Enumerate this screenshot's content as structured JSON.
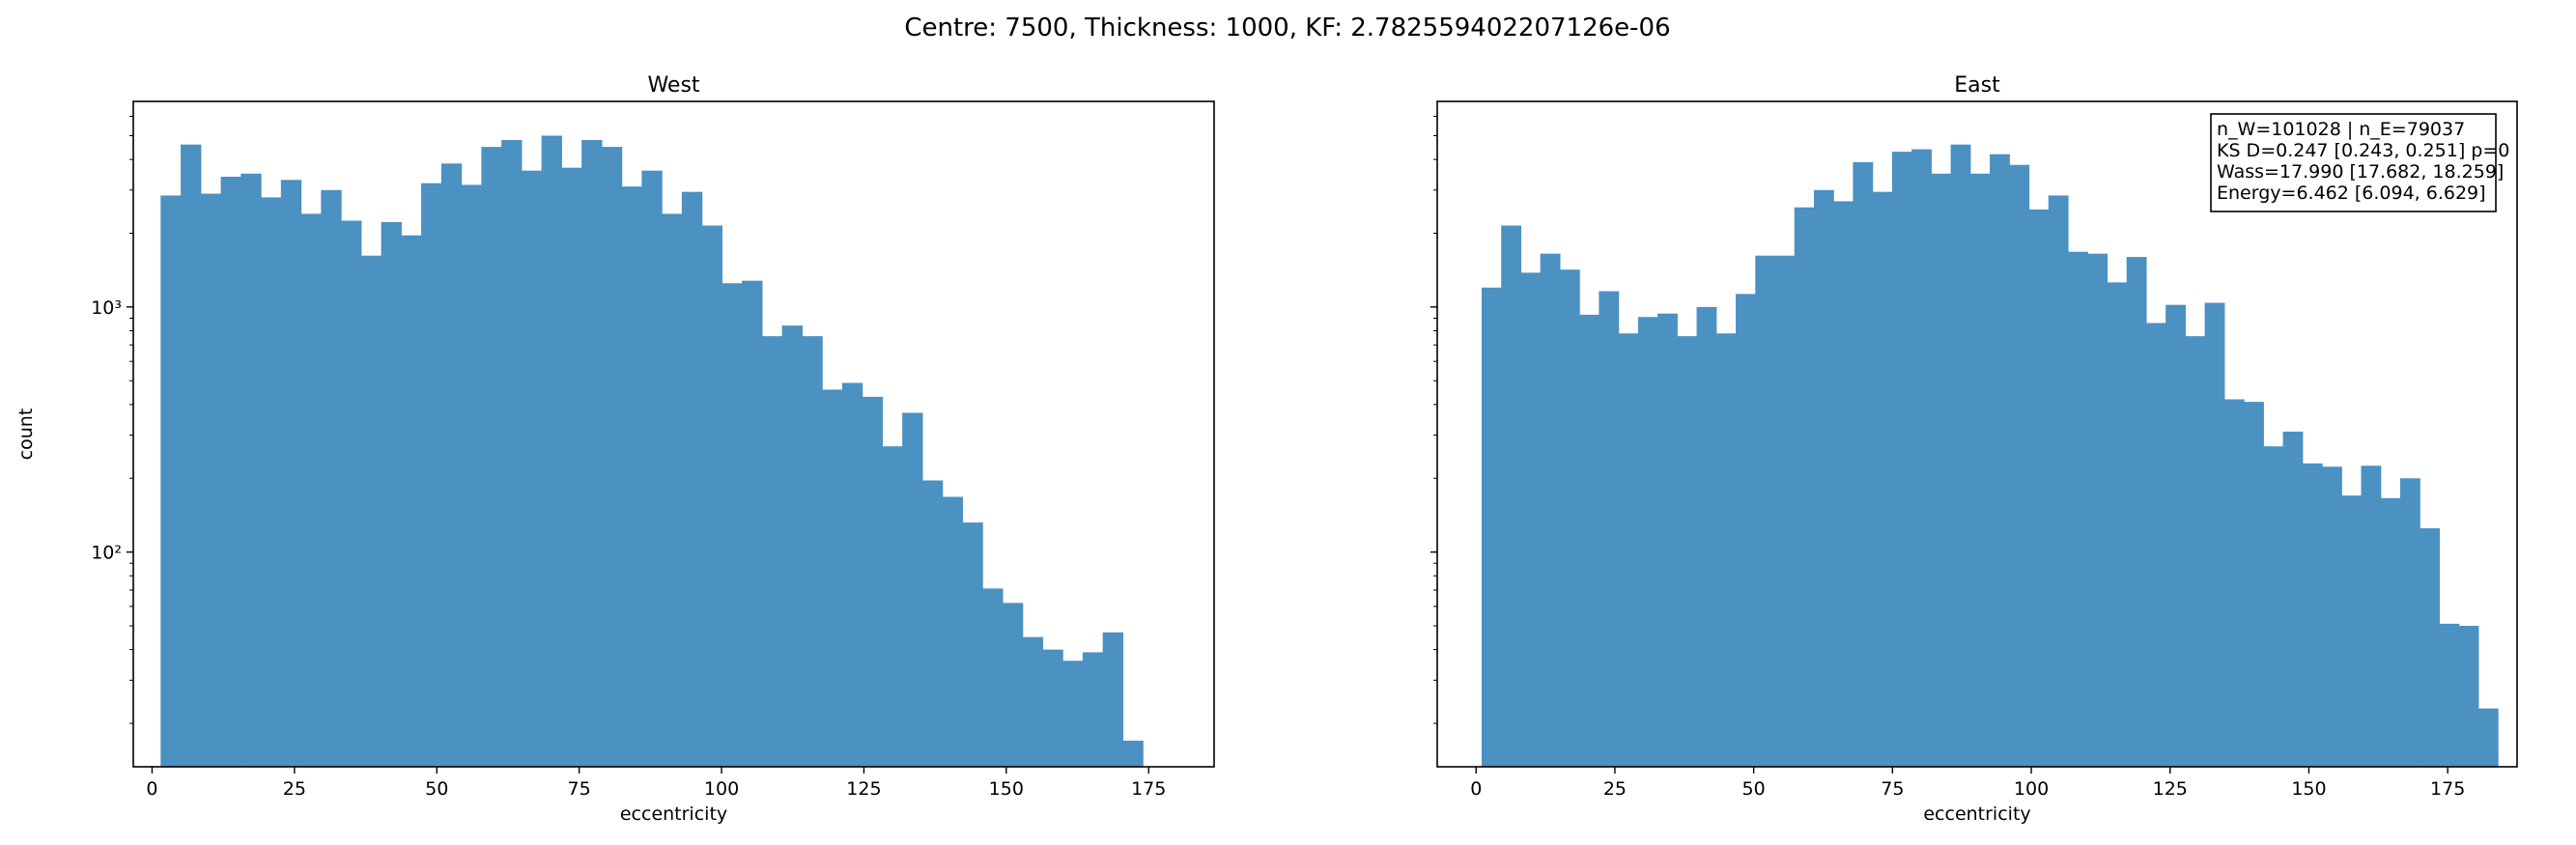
{
  "suptitle": "Centre: 7500, Thickness: 1000, KF: 2.782559402207126e-06",
  "colors": {
    "bar": "#4b91c2",
    "axis": "#000000",
    "background": "#ffffff"
  },
  "chart_data": [
    {
      "type": "bar",
      "title": "West",
      "xlabel": "eccentricity",
      "ylabel": "count",
      "yscale": "log",
      "xlim": [
        -3.3,
        186.5
      ],
      "ylim": [
        13.3,
        6900
      ],
      "xticks": [
        0,
        25,
        50,
        75,
        100,
        125,
        150,
        175
      ],
      "yticks": [
        {
          "value": 100,
          "label": "10²"
        },
        {
          "value": 1000,
          "label": "10³"
        }
      ],
      "bin_start": 1.5,
      "bin_width": 3.52,
      "values": [
        2850,
        4600,
        2900,
        3400,
        3500,
        2800,
        3300,
        2400,
        3000,
        2250,
        1620,
        2220,
        1960,
        3200,
        3850,
        3150,
        4500,
        4800,
        3600,
        5000,
        3700,
        4800,
        4500,
        3100,
        3600,
        2400,
        2950,
        2150,
        1250,
        1280,
        760,
        840,
        760,
        460,
        490,
        430,
        270,
        370,
        196,
        168,
        132,
        71,
        62,
        45,
        40,
        36,
        39,
        47,
        17
      ]
    },
    {
      "type": "bar",
      "title": "East",
      "xlabel": "eccentricity",
      "ylabel": "",
      "yscale": "log",
      "xlim": [
        -7.0,
        187.5
      ],
      "ylim": [
        13.3,
        6900
      ],
      "xticks": [
        0,
        25,
        50,
        75,
        100,
        125,
        150,
        175
      ],
      "yticks": [
        {
          "value": 100,
          "label": ""
        },
        {
          "value": 1000,
          "label": ""
        }
      ],
      "bin_start": 1.0,
      "bin_width": 3.52,
      "values": [
        1200,
        2150,
        1380,
        1650,
        1420,
        930,
        1160,
        780,
        910,
        940,
        760,
        1000,
        780,
        1130,
        1620,
        1620,
        2550,
        3000,
        2700,
        3900,
        2950,
        4300,
        4400,
        3500,
        4600,
        3500,
        4200,
        3800,
        2500,
        2850,
        1680,
        1650,
        1260,
        1600,
        860,
        1020,
        760,
        1040,
        420,
        410,
        270,
        310,
        230,
        223,
        170,
        225,
        166,
        200,
        125,
        51,
        50,
        23
      ],
      "annotation": [
        "n_W=101028 | n_E=79037",
        "KS D=0.247 [0.243, 0.251]  p=0",
        "Wass=17.990 [17.682, 18.259]",
        "Energy=6.462 [6.094, 6.629]"
      ]
    }
  ]
}
